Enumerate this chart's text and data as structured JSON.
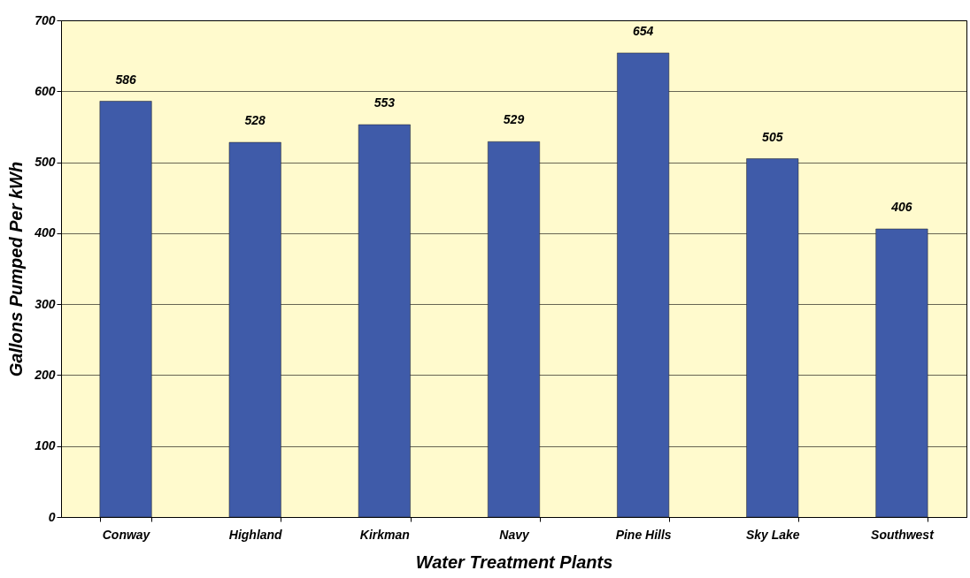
{
  "chart_data": {
    "type": "bar",
    "xlabel": "Water Treatment Plants",
    "ylabel": "Gallons Pumped Per kWh",
    "categories": [
      "Conway",
      "Highland",
      "Kirkman",
      "Navy",
      "Pine Hills",
      "Sky Lake",
      "Southwest"
    ],
    "values": [
      586,
      528,
      553,
      529,
      654,
      505,
      406
    ],
    "color": "#3f5ba9",
    "ylim": [
      0,
      700
    ],
    "yticks": [
      0,
      100,
      200,
      300,
      400,
      500,
      600,
      700
    ],
    "grid": "y",
    "data_labels": true
  }
}
